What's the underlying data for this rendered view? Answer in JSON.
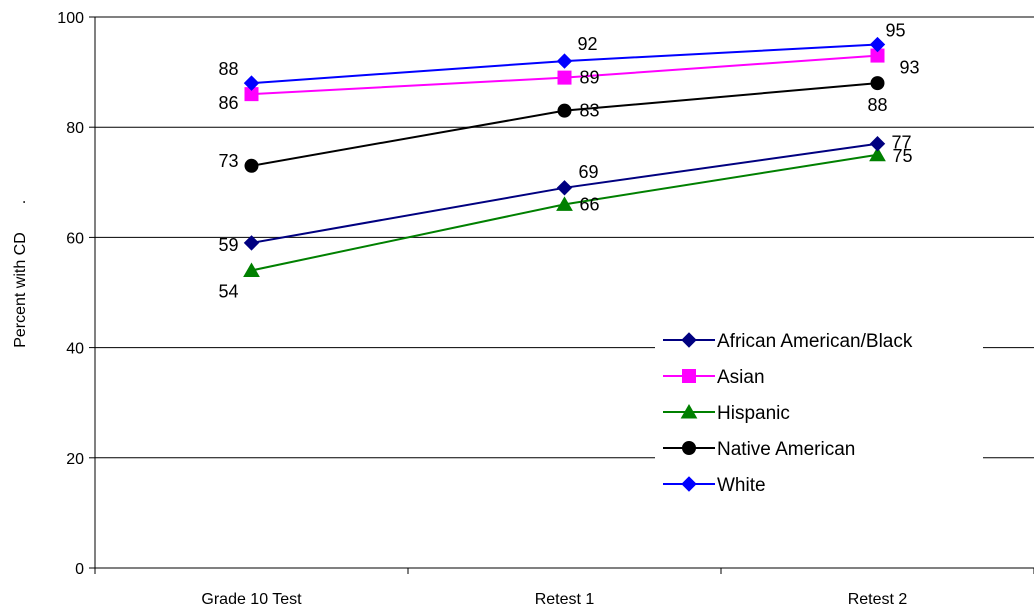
{
  "chart_data": {
    "type": "line",
    "title": "",
    "xlabel": "",
    "ylabel": "Percent with CD",
    "ylabel_mark": ".",
    "categories": [
      "Grade 10 Test",
      "Retest 1",
      "Retest 2"
    ],
    "ylim": [
      0,
      100
    ],
    "yticks": [
      "0",
      "20",
      "40",
      "60",
      "80",
      "100"
    ],
    "grid": true,
    "legend_position": "right",
    "series": [
      {
        "name": "African American/Black",
        "values": [
          59,
          69,
          77
        ],
        "color": "#000080",
        "marker": "diamond"
      },
      {
        "name": "Asian",
        "values": [
          86,
          89,
          93
        ],
        "color": "#ff00ff",
        "marker": "square"
      },
      {
        "name": "Hispanic",
        "values": [
          54,
          66,
          75
        ],
        "color": "#008000",
        "marker": "triangle"
      },
      {
        "name": "Native American",
        "values": [
          73,
          83,
          88
        ],
        "color": "#000000",
        "marker": "circle"
      },
      {
        "name": "White",
        "values": [
          88,
          92,
          95
        ],
        "color": "#0000ff",
        "marker": "diamond"
      }
    ],
    "data_labels": [
      [
        "59",
        "69",
        "77"
      ],
      [
        "86",
        "89",
        "93"
      ],
      [
        "54",
        "66",
        "75"
      ],
      [
        "73",
        "83",
        "88"
      ],
      [
        "88",
        "92",
        "95"
      ]
    ]
  }
}
